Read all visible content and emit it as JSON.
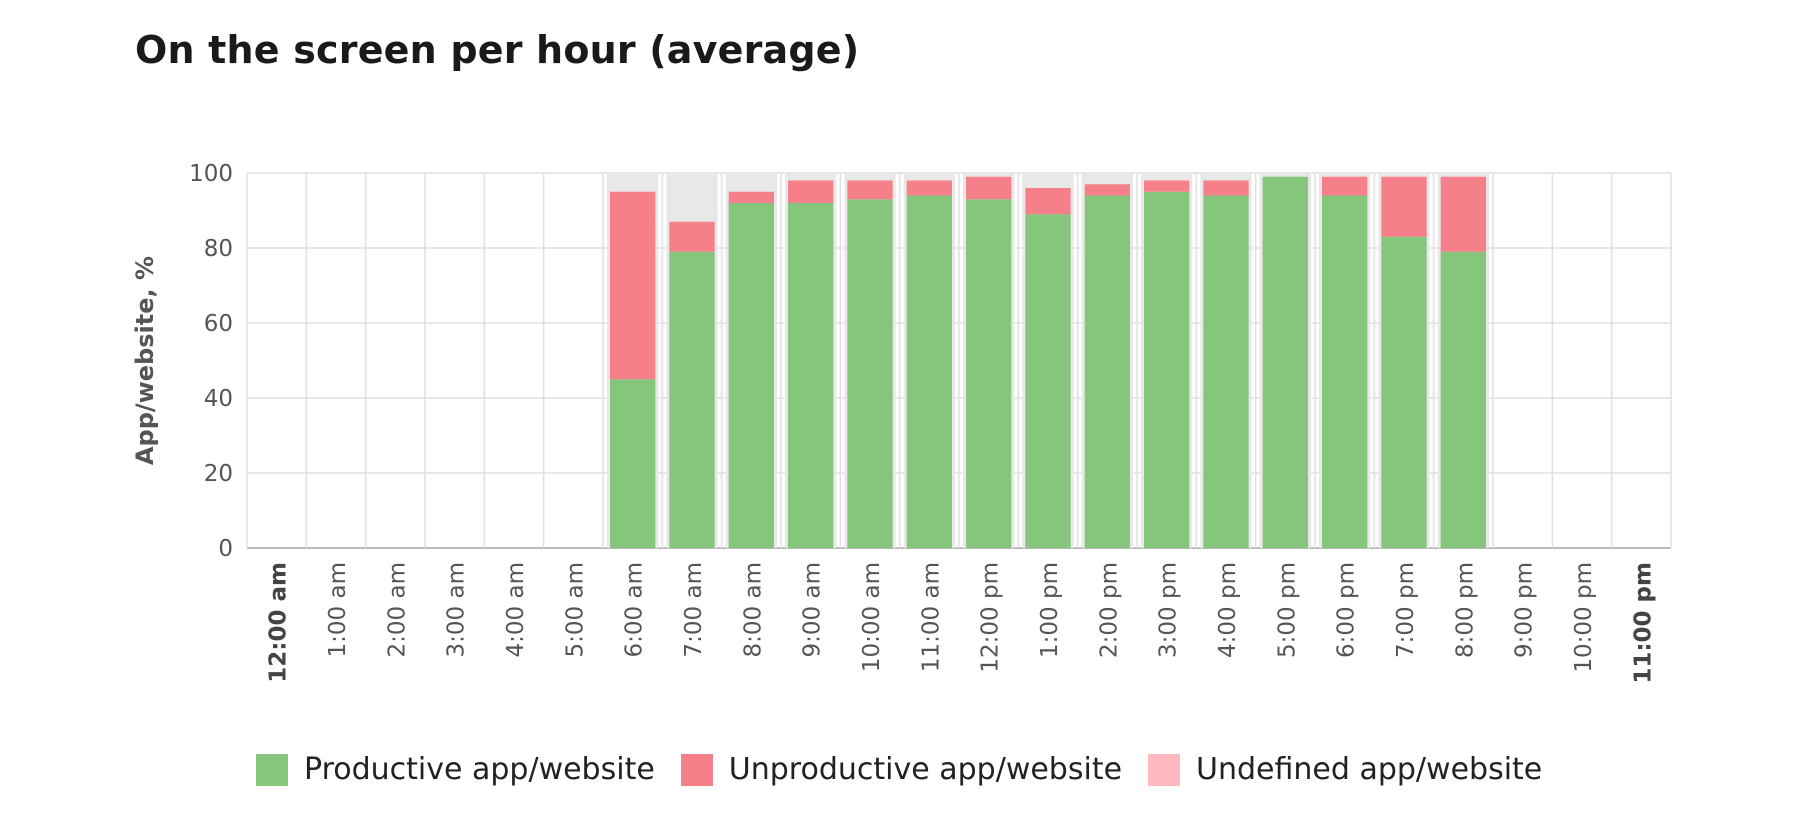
{
  "title": "On the screen per hour (average)",
  "colors": {
    "productive": "#86c67c",
    "unproductive": "#f58089",
    "undefined": "#ffb8c0",
    "remainder": "#e8e8e8",
    "grid": "#e0e0e0",
    "axis": "#bbbbbb"
  },
  "chart_data": {
    "type": "bar",
    "stacked": true,
    "title": "On the screen per hour (average)",
    "xlabel": "",
    "ylabel": "App/website, %",
    "ylim": [
      0,
      100
    ],
    "yticks": [
      "0",
      "20",
      "40",
      "60",
      "80",
      "100"
    ],
    "grid": true,
    "legend_position": "bottom",
    "categories": [
      "12:00 am",
      "1:00 am",
      "2:00 am",
      "3:00 am",
      "4:00 am",
      "5:00 am",
      "6:00 am",
      "7:00 am",
      "8:00 am",
      "9:00 am",
      "10:00 am",
      "11:00 am",
      "12:00 pm",
      "1:00 pm",
      "2:00 pm",
      "3:00 pm",
      "4:00 pm",
      "5:00 pm",
      "6:00 pm",
      "7:00 pm",
      "8:00 pm",
      "9:00 pm",
      "10:00 pm",
      "11:00 pm"
    ],
    "bold_categories": [
      "12:00 am",
      "11:00 pm"
    ],
    "active_hours": [
      false,
      false,
      false,
      false,
      false,
      false,
      true,
      true,
      true,
      true,
      true,
      true,
      true,
      true,
      true,
      true,
      true,
      true,
      true,
      true,
      true,
      false,
      false,
      false
    ],
    "series": [
      {
        "name": "Productive app/website",
        "values": [
          0,
          0,
          0,
          0,
          0,
          0,
          45,
          79,
          92,
          92,
          93,
          94,
          93,
          89,
          94,
          95,
          94,
          99,
          94,
          83,
          79,
          0,
          0,
          0
        ]
      },
      {
        "name": "Unproductive app/website",
        "values": [
          0,
          0,
          0,
          0,
          0,
          0,
          50,
          8,
          3,
          6,
          5,
          4,
          6,
          7,
          3,
          3,
          4,
          0,
          5,
          16,
          20,
          0,
          0,
          0
        ]
      },
      {
        "name": "Undefined app/website",
        "values": [
          0,
          0,
          0,
          0,
          0,
          0,
          0,
          0,
          0,
          0,
          0,
          0,
          0,
          0,
          0,
          0,
          0,
          0,
          0,
          0,
          0,
          0,
          0,
          0
        ]
      }
    ]
  }
}
